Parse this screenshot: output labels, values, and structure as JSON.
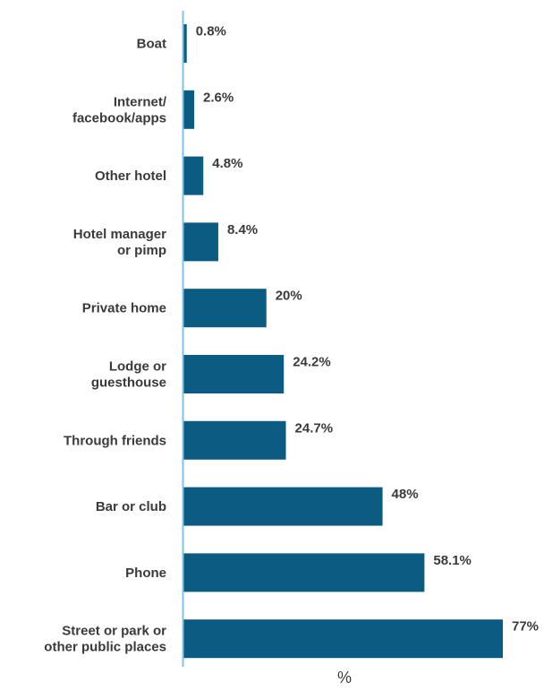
{
  "chart_data": {
    "type": "bar",
    "orientation": "horizontal",
    "categories": [
      "Boat",
      "Internet/\nfacebook/apps",
      "Other hotel",
      "Hotel manager\nor pimp",
      "Private home",
      "Lodge or\nguesthouse",
      "Through friends",
      "Bar or club",
      "Phone",
      "Street or park or\nother public places"
    ],
    "values": [
      0.8,
      2.6,
      4.8,
      8.4,
      20,
      24.2,
      24.7,
      48,
      58.1,
      77
    ],
    "value_labels": [
      "0.8%",
      "2.6%",
      "4.8%",
      "8.4%",
      "20%",
      "24.2%",
      "24.7%",
      "48%",
      "58.1%",
      "77%"
    ],
    "xlabel": "%",
    "ylabel": "",
    "xlim": [
      0,
      77
    ],
    "grid": false,
    "colors": {
      "bar": "#0c5b82",
      "axis": "#7fc4e6",
      "text": "#3a3a3a"
    }
  }
}
